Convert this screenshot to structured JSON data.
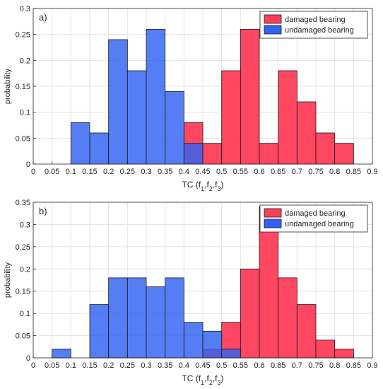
{
  "chart_data": [
    {
      "type": "bar",
      "panel_label": "a)",
      "xlabel_main": "TC (f",
      "xlabel_subs": [
        "1",
        "2",
        "3"
      ],
      "ylabel": "probability",
      "xlim": [
        0,
        0.9
      ],
      "ylim": [
        0,
        0.3
      ],
      "xticks": [
        "0",
        "0.05",
        "0.1",
        "0.15",
        "0.2",
        "0.25",
        "0.3",
        "0.35",
        "0.4",
        "0.45",
        "0.5",
        "0.55",
        "0.6",
        "0.65",
        "0.7",
        "0.75",
        "0.8",
        "0.85",
        "0.9"
      ],
      "yticks": [
        "0",
        "0.05",
        "0.1",
        "0.15",
        "0.2",
        "0.25",
        "0.3"
      ],
      "grid": true,
      "legend_position": "top-right",
      "bin_width": 0.05,
      "series": [
        {
          "name": "damaged bearing",
          "color": "#ff3d5a",
          "bin_starts": [
            0.4,
            0.45,
            0.5,
            0.55,
            0.6,
            0.65,
            0.7,
            0.75,
            0.8
          ],
          "values": [
            0.08,
            0.04,
            0.18,
            0.26,
            0.04,
            0.18,
            0.12,
            0.06,
            0.04
          ]
        },
        {
          "name": "undamaged bearing",
          "color": "#2f62f2",
          "bin_starts": [
            0.1,
            0.15,
            0.2,
            0.25,
            0.3,
            0.35,
            0.4
          ],
          "values": [
            0.08,
            0.06,
            0.24,
            0.18,
            0.26,
            0.14,
            0.04
          ]
        }
      ]
    },
    {
      "type": "bar",
      "panel_label": "b)",
      "xlabel_main": "TC (f",
      "xlabel_subs": [
        "1",
        "2",
        "3"
      ],
      "ylabel": "probability",
      "xlim": [
        0,
        0.9
      ],
      "ylim": [
        0,
        0.35
      ],
      "xticks": [
        "0",
        "0.05",
        "0.1",
        "0.15",
        "0.2",
        "0.25",
        "0.3",
        "0.35",
        "0.4",
        "0.45",
        "0.5",
        "0.55",
        "0.6",
        "0.65",
        "0.7",
        "0.75",
        "0.8",
        "0.85",
        "0.9"
      ],
      "yticks": [
        "0",
        "0.05",
        "0.1",
        "0.15",
        "0.2",
        "0.25",
        "0.3",
        "0.35"
      ],
      "grid": true,
      "legend_position": "top-right",
      "bin_width": 0.05,
      "series": [
        {
          "name": "damaged bearing",
          "color": "#ff3d5a",
          "bin_starts": [
            0.45,
            0.5,
            0.55,
            0.6,
            0.65,
            0.7,
            0.75,
            0.8
          ],
          "values": [
            0.02,
            0.08,
            0.2,
            0.34,
            0.18,
            0.12,
            0.04,
            0.02
          ]
        },
        {
          "name": "undamaged bearing",
          "color": "#2f62f2",
          "bin_starts": [
            0.05,
            0.15,
            0.2,
            0.25,
            0.3,
            0.35,
            0.4,
            0.45,
            0.5
          ],
          "values": [
            0.02,
            0.12,
            0.18,
            0.18,
            0.16,
            0.18,
            0.08,
            0.06,
            0.02
          ]
        }
      ]
    }
  ]
}
